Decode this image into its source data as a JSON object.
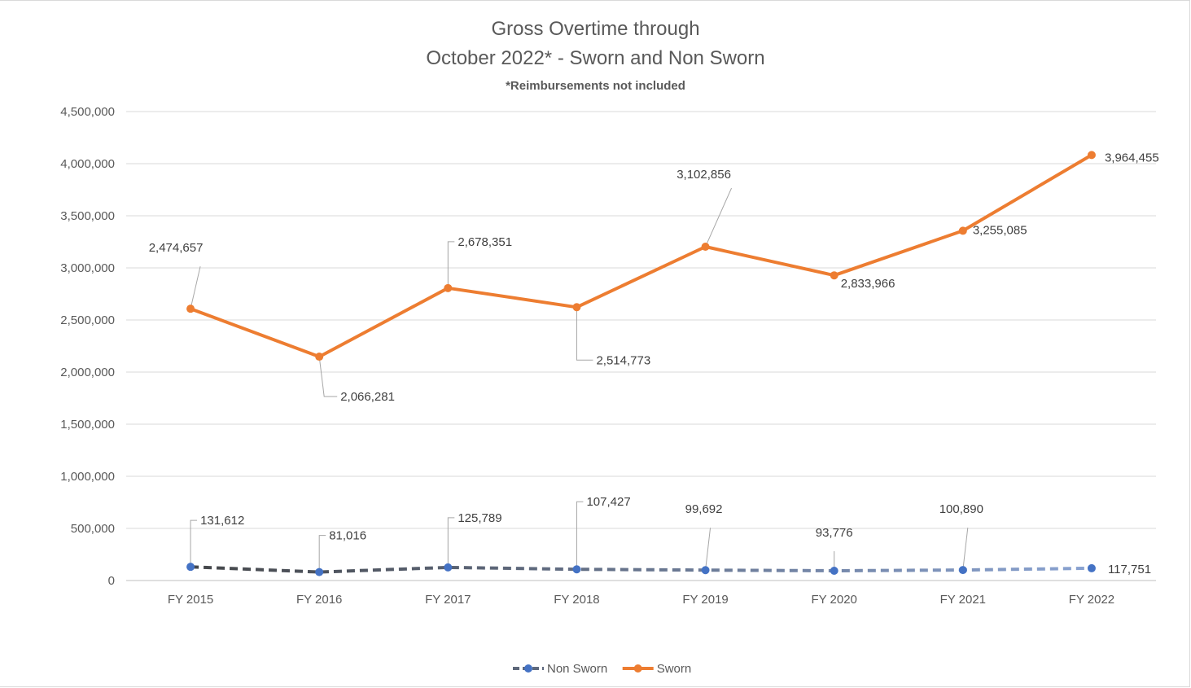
{
  "chart_data": {
    "type": "line",
    "title_line1": "Gross Overtime through",
    "title_line2": "October 2022* - Sworn and Non Sworn",
    "subtitle": "*Reimbursements not included",
    "categories": [
      "FY 2015",
      "FY 2016",
      "FY 2017",
      "FY 2018",
      "FY 2019",
      "FY 2020",
      "FY 2021",
      "FY 2022"
    ],
    "y_ticks": [
      "0",
      "500,000",
      "1,000,000",
      "1,500,000",
      "2,000,000",
      "2,500,000",
      "3,000,000",
      "3,500,000",
      "4,000,000",
      "4,500,000"
    ],
    "ylim": [
      0,
      4500000
    ],
    "grid": true,
    "legend_position": "bottom",
    "series": [
      {
        "name": "Non Sworn",
        "plotted_values": [
          131612,
          81016,
          125789,
          107427,
          99692,
          93776,
          100890,
          117751
        ],
        "labels": [
          "131,612",
          "81,016",
          "125,789",
          "107,427",
          "99,692",
          "93,776",
          "100,890",
          "117,751"
        ],
        "color": "#4472c4",
        "line_gradient": [
          "#404040",
          "#8ea9db"
        ],
        "dashed": true
      },
      {
        "name": "Sworn",
        "plotted_values": [
          2608000,
          2148000,
          2806000,
          2623000,
          3203000,
          2928000,
          3356000,
          4083000
        ],
        "labels": [
          "2,474,657",
          "2,066,281",
          "2,678,351",
          "2,514,773",
          "3,102,856",
          "2,833,966",
          "3,255,085",
          "3,964,455"
        ],
        "color": "#ed7d31",
        "dashed": false
      }
    ]
  }
}
